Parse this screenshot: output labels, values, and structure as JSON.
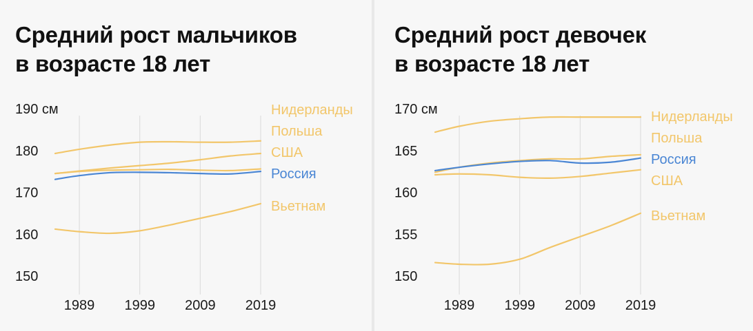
{
  "colors": {
    "highlight": "#4a86d4",
    "other": "#f2c66a",
    "text": "#111111",
    "grid": "#d9d9d9"
  },
  "chart_data": [
    {
      "type": "line",
      "title_line1": "Средний рост мальчиков",
      "title_line2": "в возрасте 18 лет",
      "ytick_labels": [
        "190 см",
        "180",
        "170",
        "160",
        "150"
      ],
      "yticks": [
        190,
        180,
        170,
        160,
        150
      ],
      "ylim": [
        150,
        190
      ],
      "xtick_labels": [
        "1989",
        "1999",
        "2009",
        "2019"
      ],
      "xticks": [
        1989,
        1999,
        2009,
        2019
      ],
      "xlim": [
        1985,
        2019
      ],
      "x": [
        1985,
        1989,
        1994,
        1999,
        2004,
        2009,
        2014,
        2019
      ],
      "series": [
        {
          "name": "Нидерланды",
          "highlight": false,
          "values": [
            179.3,
            180.3,
            181.3,
            182.0,
            182.1,
            182.0,
            182.0,
            182.3
          ]
        },
        {
          "name": "Польша",
          "highlight": false,
          "values": [
            174.5,
            175.0,
            175.3,
            175.4,
            175.5,
            175.3,
            175.2,
            175.6
          ]
        },
        {
          "name": "США",
          "highlight": false,
          "values": [
            174.5,
            175.1,
            175.8,
            176.4,
            177.0,
            177.8,
            178.7,
            179.3
          ]
        },
        {
          "name": "Россия",
          "highlight": true,
          "values": [
            173.1,
            174.0,
            174.7,
            174.8,
            174.7,
            174.5,
            174.4,
            175.0
          ]
        },
        {
          "name": "Вьетнам",
          "highlight": false,
          "values": [
            161.2,
            160.6,
            160.2,
            160.8,
            162.2,
            163.8,
            165.4,
            167.3
          ]
        }
      ]
    },
    {
      "type": "line",
      "title_line1": "Средний рост девочек",
      "title_line2": "в возрасте 18 лет",
      "ytick_labels": [
        "170 см",
        "165",
        "160",
        "155",
        "150"
      ],
      "yticks": [
        170,
        165,
        160,
        155,
        150
      ],
      "ylim": [
        150,
        170
      ],
      "xtick_labels": [
        "1989",
        "1999",
        "2009",
        "2019"
      ],
      "xticks": [
        1989,
        1999,
        2009,
        2019
      ],
      "xlim": [
        1985,
        2019
      ],
      "x": [
        1985,
        1989,
        1994,
        1999,
        2004,
        2009,
        2014,
        2019
      ],
      "series": [
        {
          "name": "Нидерланды",
          "highlight": false,
          "values": [
            167.2,
            167.9,
            168.5,
            168.8,
            169.0,
            169.0,
            169.0,
            169.0
          ]
        },
        {
          "name": "Польша",
          "highlight": false,
          "values": [
            162.4,
            163.0,
            163.5,
            163.8,
            164.0,
            164.0,
            164.3,
            164.5
          ]
        },
        {
          "name": "Россия",
          "highlight": true,
          "values": [
            162.6,
            163.0,
            163.4,
            163.7,
            163.8,
            163.5,
            163.6,
            164.1
          ]
        },
        {
          "name": "США",
          "highlight": false,
          "values": [
            162.1,
            162.2,
            162.1,
            161.8,
            161.7,
            161.9,
            162.3,
            162.7
          ]
        },
        {
          "name": "Вьетнам",
          "highlight": false,
          "values": [
            151.6,
            151.4,
            151.4,
            152.0,
            153.4,
            154.7,
            156.0,
            157.5
          ]
        }
      ]
    }
  ]
}
